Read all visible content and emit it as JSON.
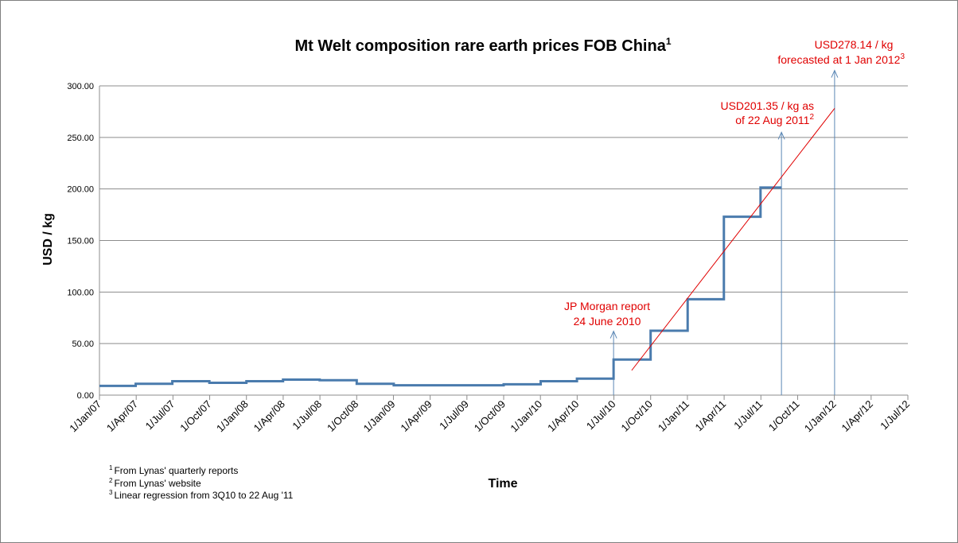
{
  "chart_data": {
    "type": "line",
    "title": "Mt Welt composition rare earth prices FOB China",
    "title_sup": "1",
    "xlabel": "Time",
    "ylabel": "USD / kg",
    "ylim": [
      0,
      300
    ],
    "y_ticks": [
      "0.00",
      "50.00",
      "100.00",
      "150.00",
      "200.00",
      "250.00",
      "300.00"
    ],
    "x_ticks": [
      "1/Jan/07",
      "1/Apr/07",
      "1/Jul/07",
      "1/Oct/07",
      "1/Jan/08",
      "1/Apr/08",
      "1/Jul/08",
      "1/Oct/08",
      "1/Jan/09",
      "1/Apr/09",
      "1/Jul/09",
      "1/Oct/09",
      "1/Jan/10",
      "1/Apr/10",
      "1/Jul/10",
      "1/Oct/10",
      "1/Jan/11",
      "1/Apr/11",
      "1/Jul/11",
      "1/Oct/11",
      "1/Jan/12",
      "1/Apr/12",
      "1/Jul/12"
    ],
    "grid": true,
    "series": [
      {
        "color": "#4a7bad",
        "style": "step",
        "points": [
          [
            "2007-01-01",
            9.0
          ],
          [
            "2007-04-01",
            11.0
          ],
          [
            "2007-07-01",
            13.5
          ],
          [
            "2007-10-01",
            12.0
          ],
          [
            "2008-01-01",
            13.5
          ],
          [
            "2008-04-01",
            15.0
          ],
          [
            "2008-07-01",
            14.5
          ],
          [
            "2008-10-01",
            11.0
          ],
          [
            "2009-01-01",
            9.5
          ],
          [
            "2009-04-01",
            9.5
          ],
          [
            "2009-07-01",
            9.5
          ],
          [
            "2009-10-01",
            10.5
          ],
          [
            "2010-01-01",
            13.5
          ],
          [
            "2010-04-01",
            16.0
          ],
          [
            "2010-07-01",
            34.5
          ],
          [
            "2010-10-01",
            62.5
          ],
          [
            "2011-01-01",
            93.0
          ],
          [
            "2011-04-01",
            173.0
          ],
          [
            "2011-07-01",
            201.35
          ],
          [
            "2011-08-22",
            201.35
          ]
        ]
      },
      {
        "color": "#e00000",
        "style": "line",
        "points": [
          [
            "2010-08-15",
            24.0
          ],
          [
            "2012-01-01",
            278.14
          ]
        ]
      }
    ],
    "arrows": [
      {
        "x": "2010-07-01",
        "y_from": 0,
        "y_to": 62
      },
      {
        "x": "2011-08-22",
        "y_from": 0,
        "y_to": 255
      },
      {
        "x": "2012-01-01",
        "y_from": 0,
        "y_to": 315
      }
    ],
    "annotations": [
      {
        "lines": [
          "JP Morgan report",
          "24 June 2010"
        ],
        "sup": ""
      },
      {
        "lines": [
          "USD201.35 / kg as",
          "of 22 Aug 2011"
        ],
        "sup": "2"
      },
      {
        "lines": [
          "USD278.14 / kg",
          "forecasted at 1 Jan 2012"
        ],
        "sup": "3"
      }
    ],
    "footnotes": [
      {
        "sup": "1",
        "text": "From Lynas' quarterly reports"
      },
      {
        "sup": "2",
        "text": "From Lynas' website"
      },
      {
        "sup": "3",
        "text": "Linear regression from 3Q10 to 22 Aug '11"
      }
    ],
    "colors": {
      "grid": "#8c8c8c",
      "axis": "#8c8c8c",
      "arrow": "#5b87b5",
      "annotation": "#e00000"
    }
  }
}
